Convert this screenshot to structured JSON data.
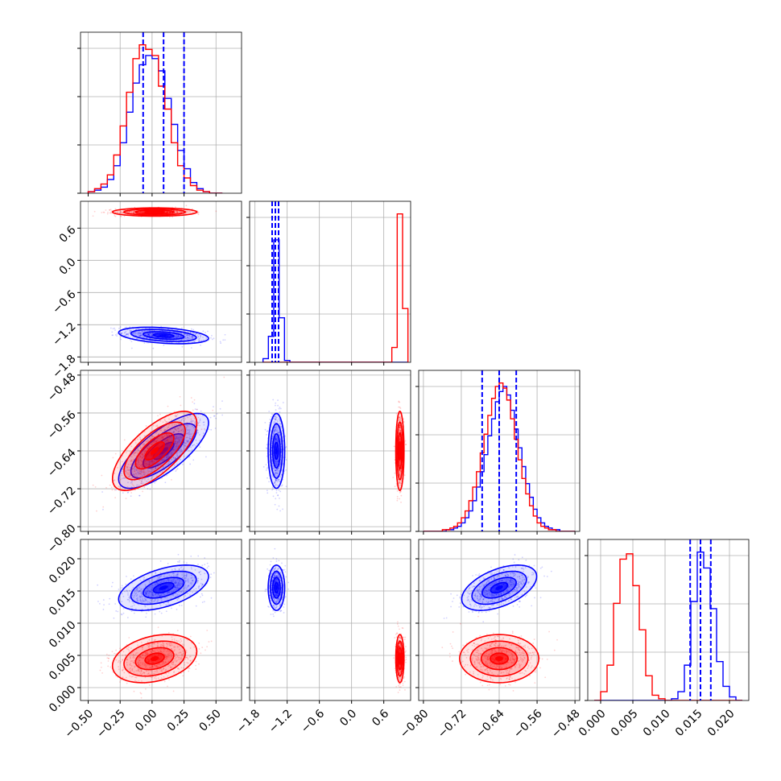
{
  "chart_data": {
    "type": "corner",
    "title": "",
    "grid": true,
    "colors": {
      "blue": "#0000ff",
      "red": "#ff0000"
    },
    "parameters": [
      {
        "index": 0,
        "range": [
          -0.56,
          0.7
        ],
        "ticks": [
          -0.5,
          -0.25,
          0.0,
          0.25,
          0.5
        ],
        "tick_labels": [
          "−0.50",
          "−0.25",
          "0.00",
          "0.25",
          "0.50"
        ]
      },
      {
        "index": 1,
        "range": [
          -1.9,
          1.1
        ],
        "ticks": [
          -1.8,
          -1.2,
          -0.6,
          0.0,
          0.6
        ],
        "tick_labels": [
          "−1.8",
          "−1.2",
          "−0.6",
          "0.0",
          "0.6"
        ]
      },
      {
        "index": 2,
        "range": [
          -0.81,
          -0.47
        ],
        "ticks": [
          -0.8,
          -0.72,
          -0.64,
          -0.56,
          -0.48
        ],
        "tick_labels": [
          "−0.80",
          "−0.72",
          "−0.64",
          "−0.56",
          "−0.48"
        ]
      },
      {
        "index": 3,
        "range": [
          -0.002,
          0.023
        ],
        "ticks": [
          0.0,
          0.005,
          0.01,
          0.015,
          0.02
        ],
        "tick_labels": [
          "0.000",
          "0.005",
          "0.010",
          "0.015",
          "0.020"
        ]
      }
    ],
    "series": [
      {
        "color": "#0000ff",
        "means": [
          0.09,
          -1.4,
          -0.64,
          0.0155
        ],
        "sigmas": [
          0.16,
          0.07,
          0.036,
          0.0016
        ],
        "correlations": {
          "1_0": -0.35,
          "2_0": 0.75,
          "2_1": 0.0,
          "3_0": 0.5,
          "3_1": 0.0,
          "3_2": 0.5
        }
      },
      {
        "color": "#ff0000",
        "means": [
          0.02,
          0.9,
          -0.64,
          0.0045
        ],
        "sigmas": [
          0.15,
          0.035,
          0.038,
          0.0017
        ],
        "correlations": {
          "1_0": 0.0,
          "2_0": 0.7,
          "2_1": 0.0,
          "3_0": 0.3,
          "3_1": 0.0,
          "3_2": 0.0
        }
      }
    ],
    "quantile_lines": {
      "color": "#0000ff",
      "style": "dashed",
      "values": [
        [
          -0.07,
          0.09,
          0.25
        ],
        [
          -1.48,
          -1.42,
          -1.36
        ],
        [
          -0.676,
          -0.64,
          -0.604
        ],
        [
          0.0139,
          0.0155,
          0.0171
        ]
      ]
    },
    "histograms_1d": [
      {
        "bins": [
          -0.5,
          -0.45,
          -0.4,
          -0.35,
          -0.3,
          -0.25,
          -0.2,
          -0.15,
          -0.1,
          -0.05,
          0.0,
          0.05,
          0.1,
          0.15,
          0.2,
          0.25,
          0.3,
          0.35,
          0.4,
          0.45,
          0.5,
          0.55
        ],
        "blue": [
          1,
          2,
          4,
          9,
          18,
          33,
          53,
          72,
          84,
          90,
          88,
          80,
          62,
          45,
          28,
          16,
          7,
          3,
          1,
          0,
          0
        ],
        "red": [
          1,
          3,
          6,
          12,
          25,
          44,
          66,
          88,
          97,
          94,
          90,
          70,
          55,
          33,
          18,
          10,
          5,
          2,
          1,
          0,
          0
        ]
      },
      {
        "bins": [
          -1.65,
          -1.55,
          -1.45,
          -1.35,
          -1.25,
          -1.15,
          -1.05,
          -0.95,
          -0.85,
          -0.75,
          -0.65,
          -0.55,
          -0.45,
          -0.35,
          -0.25,
          -0.15,
          -0.05,
          0.05,
          0.15,
          0.25,
          0.35,
          0.45,
          0.55,
          0.65,
          0.75,
          0.85,
          0.95,
          1.05
        ],
        "blue": [
          2,
          14,
          66,
          24,
          1,
          0,
          0,
          0,
          0,
          0,
          0,
          0,
          0,
          0,
          0,
          0,
          0,
          0,
          0,
          0,
          0,
          0,
          0,
          0,
          0,
          0,
          0
        ],
        "red": [
          0,
          0,
          0,
          0,
          0,
          0,
          0,
          0,
          0,
          0,
          0,
          0,
          0,
          0,
          0,
          0,
          0,
          0,
          0,
          0,
          0,
          0,
          0,
          0,
          8,
          80,
          29
        ]
      },
      {
        "bins": [
          -0.8,
          -0.792,
          -0.784,
          -0.776,
          -0.768,
          -0.76,
          -0.752,
          -0.744,
          -0.736,
          -0.728,
          -0.72,
          -0.712,
          -0.704,
          -0.696,
          -0.688,
          -0.68,
          -0.672,
          -0.664,
          -0.656,
          -0.648,
          -0.64,
          -0.632,
          -0.624,
          -0.616,
          -0.608,
          -0.6,
          -0.592,
          -0.584,
          -0.576,
          -0.568,
          -0.56,
          -0.552,
          -0.544,
          -0.536,
          -0.528,
          -0.52,
          -0.512,
          -0.504,
          -0.496,
          -0.488,
          -0.48
        ],
        "blue": [
          0,
          0,
          0,
          0,
          0,
          0,
          1,
          1,
          2,
          3,
          5,
          8,
          12,
          18,
          26,
          35,
          45,
          56,
          66,
          76,
          82,
          85,
          80,
          71,
          60,
          49,
          38,
          28,
          20,
          13,
          8,
          5,
          3,
          2,
          1,
          1,
          0,
          0,
          0,
          0
        ],
        "red": [
          0,
          0,
          0,
          0,
          0,
          1,
          1,
          2,
          3,
          5,
          8,
          12,
          18,
          26,
          35,
          46,
          57,
          68,
          78,
          85,
          87,
          84,
          77,
          66,
          54,
          42,
          31,
          22,
          15,
          9,
          5,
          3,
          2,
          1,
          1,
          0,
          0,
          0,
          0,
          0
        ]
      },
      {
        "bins": [
          -0.001,
          0.0,
          0.001,
          0.002,
          0.003,
          0.004,
          0.005,
          0.006,
          0.007,
          0.008,
          0.009,
          0.01,
          0.011,
          0.012,
          0.013,
          0.014,
          0.015,
          0.016,
          0.017,
          0.018,
          0.019,
          0.02,
          0.021,
          0.022
        ],
        "blue": [
          0,
          0,
          0,
          0,
          0,
          0,
          0,
          0,
          0,
          0,
          0,
          0,
          1,
          5,
          20,
          56,
          84,
          75,
          52,
          22,
          8,
          2,
          0
        ],
        "red": [
          0,
          5,
          20,
          55,
          80,
          83,
          65,
          40,
          14,
          3,
          1,
          0,
          0,
          0,
          0,
          0,
          0,
          0,
          0,
          0,
          0,
          0,
          0
        ]
      }
    ]
  }
}
